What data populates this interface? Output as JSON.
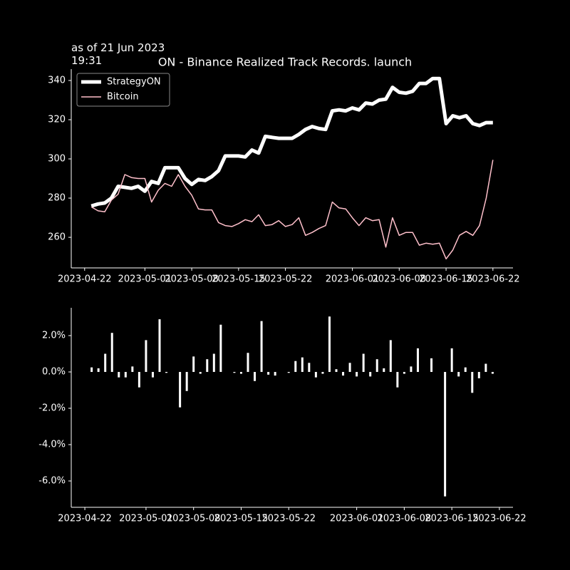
{
  "chart_data": [
    {
      "type": "line",
      "title": "ON - Binance Realized Track Records. launch",
      "annotation": "as of 21 Jun 2023\n19:31",
      "x": [
        "2023-04-23",
        "2023-04-24",
        "2023-04-25",
        "2023-04-26",
        "2023-04-27",
        "2023-04-28",
        "2023-04-29",
        "2023-04-30",
        "2023-05-01",
        "2023-05-02",
        "2023-05-03",
        "2023-05-04",
        "2023-05-05",
        "2023-05-06",
        "2023-05-07",
        "2023-05-08",
        "2023-05-09",
        "2023-05-10",
        "2023-05-11",
        "2023-05-12",
        "2023-05-13",
        "2023-05-14",
        "2023-05-15",
        "2023-05-16",
        "2023-05-17",
        "2023-05-18",
        "2023-05-19",
        "2023-05-20",
        "2023-05-21",
        "2023-05-22",
        "2023-05-23",
        "2023-05-24",
        "2023-05-25",
        "2023-05-26",
        "2023-05-27",
        "2023-05-28",
        "2023-05-29",
        "2023-05-30",
        "2023-05-31",
        "2023-06-01",
        "2023-06-02",
        "2023-06-03",
        "2023-06-04",
        "2023-06-05",
        "2023-06-06",
        "2023-06-07",
        "2023-06-08",
        "2023-06-09",
        "2023-06-10",
        "2023-06-11",
        "2023-06-12",
        "2023-06-13",
        "2023-06-14",
        "2023-06-15",
        "2023-06-16",
        "2023-06-17",
        "2023-06-18",
        "2023-06-19",
        "2023-06-20",
        "2023-06-21",
        "2023-06-22"
      ],
      "series": [
        {
          "name": "StrategyON",
          "color": "#ffffff",
          "width": 5,
          "values": [
            276,
            277,
            277.5,
            280,
            286,
            285.5,
            285,
            286,
            283.5,
            288.5,
            287.5,
            295.5,
            295.5,
            295.5,
            290,
            287,
            289.5,
            289,
            291,
            294,
            301.5,
            301.5,
            301.5,
            301,
            304.5,
            303,
            311.5,
            311,
            310.5,
            310.5,
            310.5,
            312.5,
            315,
            316.5,
            315.5,
            315,
            324.5,
            325,
            324.5,
            326,
            325,
            328.5,
            328,
            330,
            330.5,
            336.5,
            334,
            333.5,
            334.5,
            338.5,
            338.5,
            341,
            341,
            318,
            322,
            321,
            322,
            318,
            317,
            318.5,
            318.5
          ]
        },
        {
          "name": "Bitcoin",
          "color": "#ffc0cb",
          "width": 1.5,
          "values": [
            275.5,
            273.5,
            273,
            279,
            282,
            292,
            290.5,
            290,
            290,
            278,
            284,
            287.5,
            286,
            292,
            286,
            281.5,
            274.5,
            274,
            274,
            267.5,
            266,
            265.5,
            267,
            269,
            268,
            271.5,
            266,
            266.5,
            268.5,
            265.5,
            266.5,
            270,
            261,
            262.5,
            264.5,
            266,
            278,
            275,
            274.5,
            270,
            266,
            270,
            268.5,
            269,
            255,
            270,
            261,
            262.5,
            262.5,
            256,
            257,
            256.5,
            257,
            249,
            253.5,
            261,
            263,
            261,
            266,
            280,
            299.5
          ]
        }
      ],
      "xlim": [
        "2023-04-20",
        "2023-06-25"
      ],
      "xticks": [
        "2023-04-22",
        "2023-05-01",
        "2023-05-08",
        "2023-05-15",
        "2023-05-22",
        "2023-06-01",
        "2023-06-08",
        "2023-06-15",
        "2023-06-22"
      ],
      "ylim": [
        244.4,
        345.8
      ],
      "yticks": [
        260,
        280,
        300,
        320,
        340
      ],
      "legend": "upper left"
    },
    {
      "type": "bar",
      "color": "#ffffff",
      "x": [
        "2023-04-23",
        "2023-04-24",
        "2023-04-25",
        "2023-04-26",
        "2023-04-27",
        "2023-04-28",
        "2023-04-29",
        "2023-04-30",
        "2023-05-01",
        "2023-05-02",
        "2023-05-03",
        "2023-05-04",
        "2023-05-05",
        "2023-05-06",
        "2023-05-07",
        "2023-05-08",
        "2023-05-09",
        "2023-05-10",
        "2023-05-11",
        "2023-05-12",
        "2023-05-13",
        "2023-05-14",
        "2023-05-15",
        "2023-05-16",
        "2023-05-17",
        "2023-05-18",
        "2023-05-19",
        "2023-05-20",
        "2023-05-21",
        "2023-05-22",
        "2023-05-23",
        "2023-05-24",
        "2023-05-25",
        "2023-05-26",
        "2023-05-27",
        "2023-05-28",
        "2023-05-29",
        "2023-05-30",
        "2023-05-31",
        "2023-06-01",
        "2023-06-02",
        "2023-06-03",
        "2023-06-04",
        "2023-06-05",
        "2023-06-06",
        "2023-06-07",
        "2023-06-08",
        "2023-06-09",
        "2023-06-10",
        "2023-06-11",
        "2023-06-12",
        "2023-06-13",
        "2023-06-14",
        "2023-06-15",
        "2023-06-16",
        "2023-06-17",
        "2023-06-18",
        "2023-06-19",
        "2023-06-20",
        "2023-06-21"
      ],
      "values": [
        0.25,
        0.2,
        1.0,
        2.15,
        -0.3,
        -0.3,
        0.3,
        -0.85,
        1.75,
        -0.3,
        2.9,
        -0.05,
        0,
        -1.95,
        -1.05,
        0.85,
        -0.1,
        0.7,
        1.0,
        2.6,
        0,
        -0.05,
        -0.1,
        1.05,
        -0.5,
        2.8,
        -0.15,
        -0.2,
        0,
        -0.05,
        0.6,
        0.8,
        0.5,
        -0.3,
        -0.1,
        3.05,
        0.15,
        -0.2,
        0.5,
        -0.25,
        1.0,
        -0.25,
        0.7,
        0.2,
        1.75,
        -0.85,
        -0.1,
        0.3,
        1.3,
        0,
        0.75,
        0,
        -6.85,
        1.3,
        -0.25,
        0.25,
        -1.15,
        -0.35,
        0.45,
        -0.1
      ],
      "xlim": [
        "2023-04-20",
        "2023-06-24"
      ],
      "xticks": [
        "2023-04-22",
        "2023-05-01",
        "2023-05-08",
        "2023-05-15",
        "2023-05-22",
        "2023-06-01",
        "2023-06-08",
        "2023-06-15",
        "2023-06-22"
      ],
      "ylim": [
        -7.45,
        3.53
      ],
      "yticks": [
        {
          "value": -6,
          "label": "-6.0%"
        },
        {
          "value": -4,
          "label": "-4.0%"
        },
        {
          "value": -2,
          "label": "-2.0%"
        },
        {
          "value": 0,
          "label": "0.0%"
        },
        {
          "value": 2,
          "label": "2.0%"
        }
      ]
    }
  ]
}
